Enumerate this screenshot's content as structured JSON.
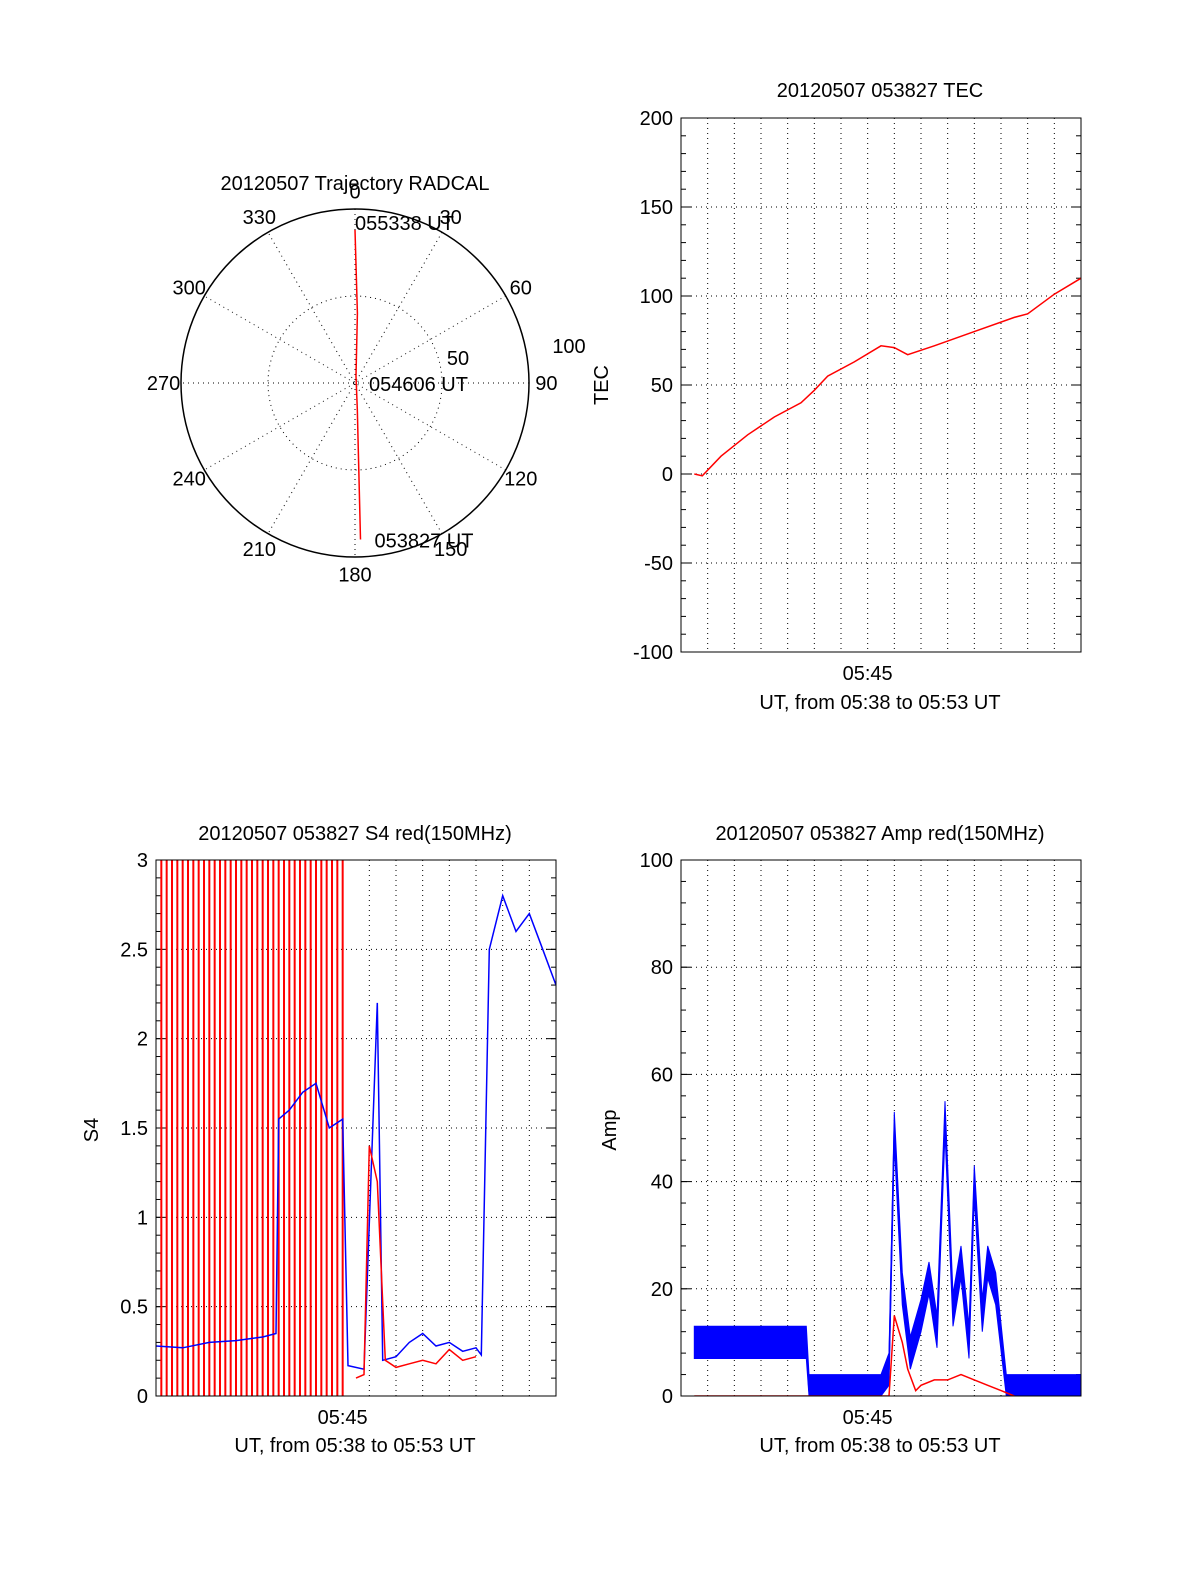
{
  "chart_data": [
    {
      "id": "polar",
      "type": "polar",
      "title": "20120507 Trajectory RADCAL",
      "azimuth_labels": [
        "0",
        "30",
        "60",
        "90",
        "120",
        "150",
        "180",
        "210",
        "240",
        "270",
        "300",
        "330"
      ],
      "radial_labels": [
        "50",
        "100"
      ],
      "elevation_rings": [
        50,
        100
      ],
      "annotations": [
        "055338 UT",
        "054606 UT",
        "053827 UT"
      ],
      "trajectory": [
        {
          "az": 0,
          "r": 88
        },
        {
          "az": 2,
          "r": 40
        },
        {
          "az": 8,
          "r": 4
        },
        {
          "az": 175,
          "r": 15
        },
        {
          "az": 178,
          "r": 90
        }
      ],
      "line_color": "#ff0000"
    },
    {
      "id": "tec",
      "type": "line",
      "title": "20120507 053827 TEC",
      "ylabel": "TEC",
      "xlabel": "UT, from 05:38 to 05:53 UT",
      "x_tick_labels": [
        "05:45"
      ],
      "y_tick_labels": [
        "200",
        "150",
        "100",
        "50",
        "0",
        "-50",
        "-100"
      ],
      "ylim": [
        -100,
        200
      ],
      "xlim_minutes": [
        0,
        15
      ],
      "x_label_at_minutes": 7,
      "grid": true,
      "series": [
        {
          "color": "#ff0000",
          "x": [
            0.5,
            0.8,
            1.5,
            2.5,
            3.5,
            4.5,
            5.0,
            5.5,
            6.5,
            7.5,
            8.0,
            8.5,
            9.5,
            11.0,
            12.5,
            13.0,
            14.0,
            15.0
          ],
          "y": [
            0,
            -1,
            10,
            22,
            32,
            40,
            47,
            55,
            63,
            72,
            71,
            67,
            72,
            80,
            88,
            90,
            101,
            110
          ]
        }
      ]
    },
    {
      "id": "s4",
      "type": "line",
      "title": "20120507 053827 S4 red(150MHz)",
      "ylabel": "S4",
      "xlabel": "UT, from 05:38 to 05:53 UT",
      "x_tick_labels": [
        "05:45"
      ],
      "y_tick_labels": [
        "3",
        "2.5",
        "2",
        "1.5",
        "1",
        "0.5",
        "0"
      ],
      "ylim": [
        0,
        3
      ],
      "xlim_minutes": [
        0,
        15
      ],
      "x_label_at_minutes": 7,
      "grid": true,
      "series": [
        {
          "color": "#0000ff",
          "x": [
            0.0,
            1.0,
            2.0,
            3.0,
            4.0,
            4.5,
            4.6,
            5.0,
            5.5,
            6.0,
            6.5,
            7.0,
            7.2,
            7.8,
            8.3,
            8.5,
            9.0,
            9.5,
            10.0,
            10.5,
            11.0,
            11.5,
            12.0,
            12.2,
            12.5,
            13.0,
            13.5,
            14.0,
            14.5,
            15.0
          ],
          "y": [
            0.28,
            0.27,
            0.3,
            0.31,
            0.33,
            0.35,
            1.55,
            1.6,
            1.7,
            1.75,
            1.5,
            1.55,
            0.17,
            0.15,
            2.2,
            0.2,
            0.22,
            0.3,
            0.35,
            0.28,
            0.3,
            0.25,
            0.27,
            0.23,
            2.5,
            2.8,
            2.6,
            2.7,
            2.5,
            2.3
          ]
        },
        {
          "color": "#ff0000",
          "x": [
            7.5,
            7.8,
            8.0,
            8.3,
            8.6,
            9.0,
            9.5,
            10.0,
            10.5,
            11.0,
            11.5,
            12.0
          ],
          "y": [
            0.1,
            0.12,
            1.4,
            1.2,
            0.2,
            0.16,
            0.18,
            0.2,
            0.18,
            0.26,
            0.2,
            0.22
          ]
        }
      ],
      "red_spikes_x": [
        0.2,
        0.4,
        0.6,
        0.8,
        1.0,
        1.2,
        1.4,
        1.6,
        1.8,
        2.0,
        2.2,
        2.4,
        2.6,
        2.8,
        3.0,
        3.2,
        3.4,
        3.6,
        3.8,
        4.0,
        4.2,
        4.4,
        4.6,
        4.8,
        5.0,
        5.2,
        5.4,
        5.6,
        5.8,
        6.0,
        6.2,
        6.4,
        6.6,
        6.8,
        7.0
      ]
    },
    {
      "id": "amp",
      "type": "line",
      "title": "20120507 053827 Amp red(150MHz)",
      "ylabel": "Amp",
      "xlabel": "UT, from 05:38 to 05:53 UT",
      "x_tick_labels": [
        "05:45"
      ],
      "y_tick_labels": [
        "100",
        "80",
        "60",
        "40",
        "20",
        "0"
      ],
      "ylim": [
        0,
        100
      ],
      "xlim_minutes": [
        0,
        15
      ],
      "x_label_at_minutes": 7,
      "grid": true,
      "series": [
        {
          "color": "#0000ff",
          "x": [
            0.5,
            4.7,
            4.8,
            7.5,
            7.8,
            8.0,
            8.3,
            8.6,
            9.0,
            9.3,
            9.6,
            9.9,
            10.2,
            10.5,
            10.8,
            11.0,
            11.3,
            11.5,
            11.8,
            12.2,
            15.0
          ],
          "y": [
            10,
            10,
            1,
            1,
            5,
            50,
            20,
            8,
            15,
            22,
            12,
            52,
            16,
            25,
            10,
            40,
            15,
            25,
            20,
            1,
            1
          ],
          "band": 6
        },
        {
          "color": "#ff0000",
          "x": [
            0.5,
            7.8,
            8.0,
            8.3,
            8.5,
            8.8,
            9.0,
            9.5,
            10.0,
            10.5,
            11.0,
            11.5,
            12.0,
            12.5
          ],
          "y": [
            0,
            0,
            15,
            10,
            5,
            1,
            2,
            3,
            3,
            4,
            3,
            2,
            1,
            0
          ]
        }
      ]
    }
  ]
}
